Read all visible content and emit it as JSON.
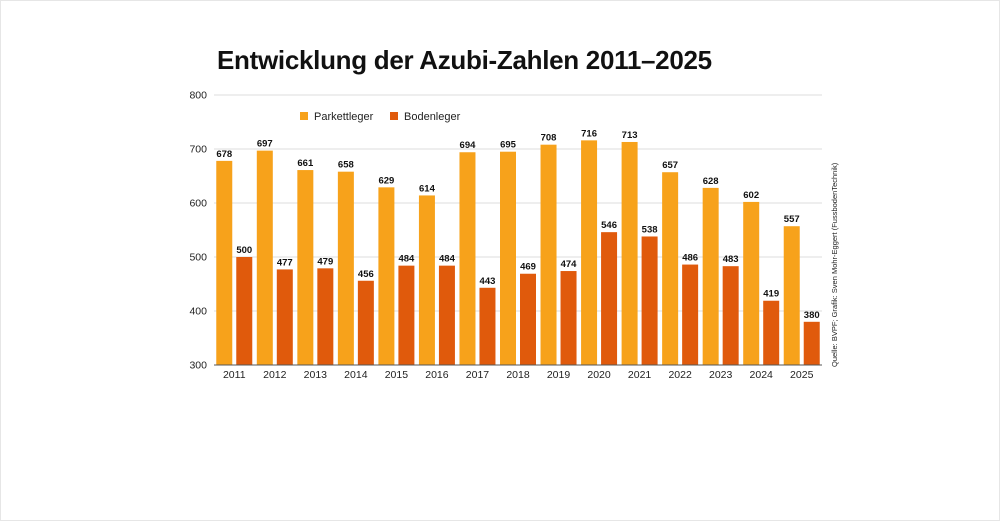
{
  "chart_data": {
    "type": "bar",
    "title": "Entwicklung der Azubi-Zahlen 2011–2025",
    "categories": [
      "2011",
      "2012",
      "2013",
      "2014",
      "2015",
      "2016",
      "2017",
      "2018",
      "2019",
      "2020",
      "2021",
      "2022",
      "2023",
      "2024",
      "2025"
    ],
    "series": [
      {
        "name": "Parkettleger",
        "color": "#F7A21B",
        "values": [
          678,
          697,
          661,
          658,
          629,
          614,
          694,
          695,
          708,
          716,
          713,
          657,
          628,
          602,
          557
        ]
      },
      {
        "name": "Bodenleger",
        "color": "#E05A0C",
        "values": [
          500,
          477,
          479,
          456,
          484,
          484,
          443,
          469,
          474,
          546,
          538,
          486,
          483,
          419,
          380
        ]
      }
    ],
    "ylim": [
      300,
      800
    ],
    "yticks": [
      300,
      400,
      500,
      600,
      700,
      800
    ],
    "grid": true,
    "legend": "top-left",
    "data_labels": true,
    "source": "Quelle: BVPF; Grafik: Sven Mohr-Eggert (FussbodenTechnik)"
  }
}
